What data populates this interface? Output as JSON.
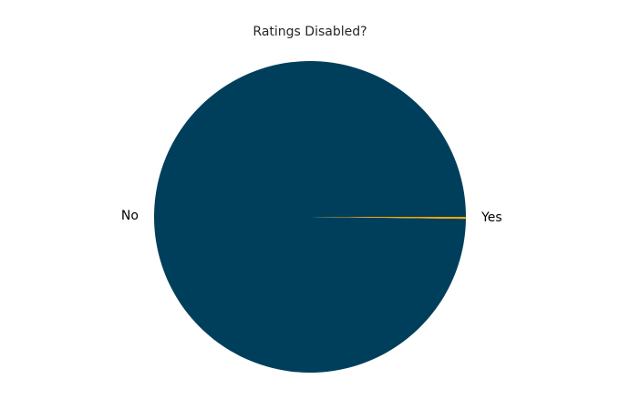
{
  "chart_data": {
    "type": "pie",
    "title": "Ratings Disabled?",
    "categories": [
      "No",
      "Yes"
    ],
    "values": [
      99.8,
      0.2
    ],
    "colors": [
      "#003f5c",
      "#ffa600"
    ],
    "label_placement": "outside",
    "legend": "none",
    "grid": false
  }
}
